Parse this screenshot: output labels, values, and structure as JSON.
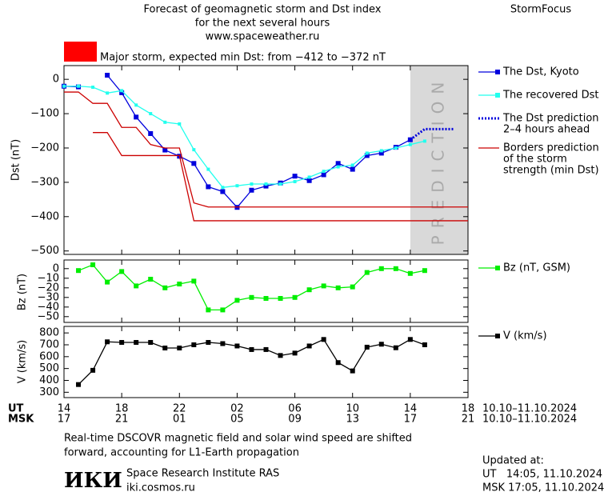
{
  "header": {
    "title": [
      "Forecast of geomagnetic storm and Dst index",
      "for the next several hours",
      "www.spaceweather.ru"
    ],
    "brand": "StormFocus",
    "storm_color": "#ff0000",
    "storm_text": "Major storm, expected min Dst: from −412 to −372 nT"
  },
  "chart_data": [
    {
      "type": "line",
      "ylabel": "Dst (nT)",
      "xlim": [
        0,
        28
      ],
      "ylim": [
        -510,
        40
      ],
      "yticks": [
        0,
        {
          "value": -100,
          "label": "−100"
        },
        {
          "value": -200,
          "label": "−200"
        },
        {
          "value": -300,
          "label": "−300"
        },
        {
          "value": -400,
          "label": "−400"
        },
        {
          "value": -500,
          "label": "−500"
        }
      ],
      "prediction_zone": {
        "label": "PREDICTION",
        "xlim": [
          24,
          28
        ]
      },
      "series": [
        {
          "name": [
            "The Dst, Kyoto"
          ],
          "color": "#0000dd",
          "marker": "square",
          "style": "solid",
          "x": [
            0,
            1,
            2,
            3,
            4,
            5,
            6,
            7,
            8,
            9,
            10,
            11,
            12,
            13,
            14,
            15,
            16,
            17,
            18,
            19,
            20,
            21,
            22,
            23,
            24
          ],
          "values": [
            -20,
            -22,
            null,
            12,
            -39,
            -110,
            -158,
            -206,
            -224,
            -245,
            -313,
            -327,
            -373,
            -323,
            -311,
            -302,
            -282,
            -295,
            -278,
            -245,
            -262,
            -222,
            -215,
            -198,
            -176
          ]
        },
        {
          "name": [
            "The recovered Dst"
          ],
          "color": "#22ffee",
          "marker": "square",
          "style": "solid",
          "x": [
            0,
            1,
            2,
            3,
            4,
            5,
            6,
            7,
            8,
            9,
            10,
            11,
            12,
            13,
            14,
            15,
            16,
            17,
            18,
            19,
            20,
            21,
            22,
            23,
            24,
            25
          ],
          "values": [
            -20,
            -20,
            -23,
            -40,
            -33,
            -75,
            -100,
            -125,
            -130,
            -205,
            -262,
            -315,
            -310,
            -305,
            -305,
            -305,
            -298,
            -285,
            -268,
            -255,
            -250,
            -215,
            -208,
            -200,
            -190,
            -180
          ]
        },
        {
          "name": [
            "The Dst prediction",
            "2–4 hours ahead"
          ],
          "color": "#0000dd",
          "marker": "none",
          "style": "dotted",
          "x": [
            24,
            25,
            27
          ],
          "values": [
            -176,
            -145,
            -145
          ]
        },
        {
          "name": [
            "Borders prediction",
            "of the storm",
            "strength (min Dst)"
          ],
          "color": "#cc0000",
          "marker": "none",
          "style": "solid",
          "x": [
            0,
            1,
            2,
            3,
            4,
            5,
            6,
            7,
            8,
            9,
            10,
            28
          ],
          "values": [
            -37,
            -37,
            -70,
            -70,
            -140,
            -140,
            -190,
            -200,
            -200,
            -360,
            -372,
            -372
          ]
        },
        {
          "color": "#cc0000",
          "marker": "none",
          "style": "solid",
          "x": [
            2,
            3,
            4,
            8,
            9,
            28
          ],
          "values": [
            -155,
            -155,
            -222,
            -222,
            -412,
            -412
          ]
        }
      ]
    },
    {
      "type": "line",
      "ylabel": "Bz (nT)",
      "xlim": [
        0,
        28
      ],
      "ylim": [
        -56,
        9
      ],
      "yticks": [
        0,
        {
          "value": -10,
          "label": "−10"
        },
        {
          "value": -20,
          "label": "−20"
        },
        {
          "value": -30,
          "label": "−30"
        },
        {
          "value": -40,
          "label": "−40"
        },
        {
          "value": -50,
          "label": "−50"
        }
      ],
      "series": [
        {
          "name": [
            "Bz (nT, GSM)"
          ],
          "color": "#00ee00",
          "marker": "square",
          "style": "solid",
          "x": [
            1,
            2,
            3,
            4,
            5,
            6,
            7,
            8,
            9,
            10,
            11,
            12,
            13,
            14,
            15,
            16,
            17,
            18,
            19,
            20,
            21,
            22,
            23,
            24,
            25
          ],
          "values": [
            -2,
            4,
            -14,
            -3,
            -18,
            -11,
            -20,
            -16,
            -13,
            -43,
            -43,
            -33,
            -30,
            -31,
            -31,
            -30,
            -22,
            -18,
            -20,
            -19,
            -4,
            0,
            0,
            -5,
            -2
          ]
        }
      ]
    },
    {
      "type": "line",
      "ylabel": "V (km/s)",
      "xlim": [
        0,
        28
      ],
      "ylim": [
        255,
        855
      ],
      "yticks": [
        300,
        400,
        500,
        600,
        700,
        800
      ],
      "xlabels": [
        "UT",
        "MSK"
      ],
      "date_range": [
        "10.10–11.10.2024",
        "10.10–11.10.2024"
      ],
      "xticks": [
        {
          "value": 0,
          "label": "14"
        },
        {
          "value": 4,
          "label": "18"
        },
        {
          "value": 8,
          "label": "22"
        },
        {
          "value": 12,
          "label": "02"
        },
        {
          "value": 16,
          "label": "06"
        },
        {
          "value": 20,
          "label": "10"
        },
        {
          "value": 24,
          "label": "14"
        },
        {
          "value": 28,
          "label": "18"
        }
      ],
      "msk_ticks": [
        {
          "value": 0,
          "label": "17"
        },
        {
          "value": 4,
          "label": "21"
        },
        {
          "value": 8,
          "label": "01"
        },
        {
          "value": 12,
          "label": "05"
        },
        {
          "value": 16,
          "label": "09"
        },
        {
          "value": 20,
          "label": "13"
        },
        {
          "value": 24,
          "label": "17"
        },
        {
          "value": 28,
          "label": "21"
        }
      ],
      "series": [
        {
          "name": [
            "V (km/s)"
          ],
          "color": "#000000",
          "marker": "square",
          "style": "solid",
          "x": [
            1,
            2,
            3,
            4,
            5,
            6,
            7,
            8,
            9,
            10,
            11,
            12,
            13,
            14,
            15,
            16,
            17,
            18,
            19,
            20,
            21,
            22,
            23,
            24,
            25
          ],
          "values": [
            365,
            485,
            725,
            720,
            720,
            720,
            673,
            673,
            700,
            720,
            710,
            690,
            660,
            660,
            610,
            630,
            690,
            745,
            550,
            480,
            680,
            705,
            675,
            745,
            700
          ]
        }
      ]
    }
  ],
  "footer": {
    "note": [
      "Real-time DSCOVR magnetic field and solar wind speed are shifted",
      "forward, accounting for L1-Earth propagation"
    ],
    "logo": "ИКИ",
    "institute": "Space Research Institute RAS",
    "site": "iki.cosmos.ru",
    "updated": [
      "Updated at:",
      "UT   14:05, 11.10.2024",
      "MSK 17:05, 11.10.2024"
    ]
  }
}
